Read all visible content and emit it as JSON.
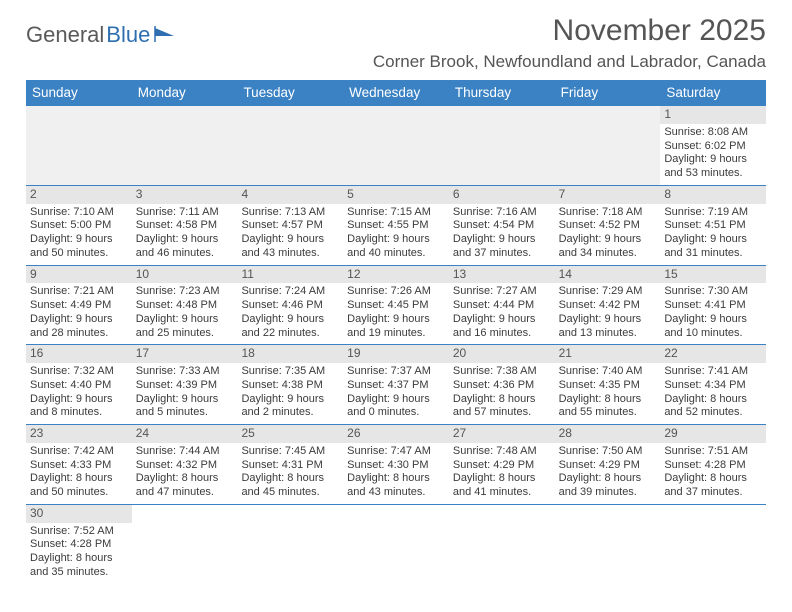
{
  "logo": {
    "word1": "General",
    "word2": "Blue"
  },
  "title": {
    "month": "November 2025",
    "location": "Corner Brook, Newfoundland and Labrador, Canada"
  },
  "colors": {
    "header_bg": "#3a82c4",
    "header_text": "#ffffff",
    "rule": "#3a82c4",
    "daybar": "#e6e6e6",
    "empty": "#f0f0f0",
    "text": "#3b3b3b",
    "title": "#555555"
  },
  "dayNames": [
    "Sunday",
    "Monday",
    "Tuesday",
    "Wednesday",
    "Thursday",
    "Friday",
    "Saturday"
  ],
  "weeks": [
    [
      null,
      null,
      null,
      null,
      null,
      null,
      {
        "n": "1",
        "sr": "Sunrise: 8:08 AM",
        "ss": "Sunset: 6:02 PM",
        "dl": "Daylight: 9 hours and 53 minutes."
      }
    ],
    [
      {
        "n": "2",
        "sr": "Sunrise: 7:10 AM",
        "ss": "Sunset: 5:00 PM",
        "dl": "Daylight: 9 hours and 50 minutes."
      },
      {
        "n": "3",
        "sr": "Sunrise: 7:11 AM",
        "ss": "Sunset: 4:58 PM",
        "dl": "Daylight: 9 hours and 46 minutes."
      },
      {
        "n": "4",
        "sr": "Sunrise: 7:13 AM",
        "ss": "Sunset: 4:57 PM",
        "dl": "Daylight: 9 hours and 43 minutes."
      },
      {
        "n": "5",
        "sr": "Sunrise: 7:15 AM",
        "ss": "Sunset: 4:55 PM",
        "dl": "Daylight: 9 hours and 40 minutes."
      },
      {
        "n": "6",
        "sr": "Sunrise: 7:16 AM",
        "ss": "Sunset: 4:54 PM",
        "dl": "Daylight: 9 hours and 37 minutes."
      },
      {
        "n": "7",
        "sr": "Sunrise: 7:18 AM",
        "ss": "Sunset: 4:52 PM",
        "dl": "Daylight: 9 hours and 34 minutes."
      },
      {
        "n": "8",
        "sr": "Sunrise: 7:19 AM",
        "ss": "Sunset: 4:51 PM",
        "dl": "Daylight: 9 hours and 31 minutes."
      }
    ],
    [
      {
        "n": "9",
        "sr": "Sunrise: 7:21 AM",
        "ss": "Sunset: 4:49 PM",
        "dl": "Daylight: 9 hours and 28 minutes."
      },
      {
        "n": "10",
        "sr": "Sunrise: 7:23 AM",
        "ss": "Sunset: 4:48 PM",
        "dl": "Daylight: 9 hours and 25 minutes."
      },
      {
        "n": "11",
        "sr": "Sunrise: 7:24 AM",
        "ss": "Sunset: 4:46 PM",
        "dl": "Daylight: 9 hours and 22 minutes."
      },
      {
        "n": "12",
        "sr": "Sunrise: 7:26 AM",
        "ss": "Sunset: 4:45 PM",
        "dl": "Daylight: 9 hours and 19 minutes."
      },
      {
        "n": "13",
        "sr": "Sunrise: 7:27 AM",
        "ss": "Sunset: 4:44 PM",
        "dl": "Daylight: 9 hours and 16 minutes."
      },
      {
        "n": "14",
        "sr": "Sunrise: 7:29 AM",
        "ss": "Sunset: 4:42 PM",
        "dl": "Daylight: 9 hours and 13 minutes."
      },
      {
        "n": "15",
        "sr": "Sunrise: 7:30 AM",
        "ss": "Sunset: 4:41 PM",
        "dl": "Daylight: 9 hours and 10 minutes."
      }
    ],
    [
      {
        "n": "16",
        "sr": "Sunrise: 7:32 AM",
        "ss": "Sunset: 4:40 PM",
        "dl": "Daylight: 9 hours and 8 minutes."
      },
      {
        "n": "17",
        "sr": "Sunrise: 7:33 AM",
        "ss": "Sunset: 4:39 PM",
        "dl": "Daylight: 9 hours and 5 minutes."
      },
      {
        "n": "18",
        "sr": "Sunrise: 7:35 AM",
        "ss": "Sunset: 4:38 PM",
        "dl": "Daylight: 9 hours and 2 minutes."
      },
      {
        "n": "19",
        "sr": "Sunrise: 7:37 AM",
        "ss": "Sunset: 4:37 PM",
        "dl": "Daylight: 9 hours and 0 minutes."
      },
      {
        "n": "20",
        "sr": "Sunrise: 7:38 AM",
        "ss": "Sunset: 4:36 PM",
        "dl": "Daylight: 8 hours and 57 minutes."
      },
      {
        "n": "21",
        "sr": "Sunrise: 7:40 AM",
        "ss": "Sunset: 4:35 PM",
        "dl": "Daylight: 8 hours and 55 minutes."
      },
      {
        "n": "22",
        "sr": "Sunrise: 7:41 AM",
        "ss": "Sunset: 4:34 PM",
        "dl": "Daylight: 8 hours and 52 minutes."
      }
    ],
    [
      {
        "n": "23",
        "sr": "Sunrise: 7:42 AM",
        "ss": "Sunset: 4:33 PM",
        "dl": "Daylight: 8 hours and 50 minutes."
      },
      {
        "n": "24",
        "sr": "Sunrise: 7:44 AM",
        "ss": "Sunset: 4:32 PM",
        "dl": "Daylight: 8 hours and 47 minutes."
      },
      {
        "n": "25",
        "sr": "Sunrise: 7:45 AM",
        "ss": "Sunset: 4:31 PM",
        "dl": "Daylight: 8 hours and 45 minutes."
      },
      {
        "n": "26",
        "sr": "Sunrise: 7:47 AM",
        "ss": "Sunset: 4:30 PM",
        "dl": "Daylight: 8 hours and 43 minutes."
      },
      {
        "n": "27",
        "sr": "Sunrise: 7:48 AM",
        "ss": "Sunset: 4:29 PM",
        "dl": "Daylight: 8 hours and 41 minutes."
      },
      {
        "n": "28",
        "sr": "Sunrise: 7:50 AM",
        "ss": "Sunset: 4:29 PM",
        "dl": "Daylight: 8 hours and 39 minutes."
      },
      {
        "n": "29",
        "sr": "Sunrise: 7:51 AM",
        "ss": "Sunset: 4:28 PM",
        "dl": "Daylight: 8 hours and 37 minutes."
      }
    ],
    [
      {
        "n": "30",
        "sr": "Sunrise: 7:52 AM",
        "ss": "Sunset: 4:28 PM",
        "dl": "Daylight: 8 hours and 35 minutes."
      },
      null,
      null,
      null,
      null,
      null,
      null
    ]
  ]
}
